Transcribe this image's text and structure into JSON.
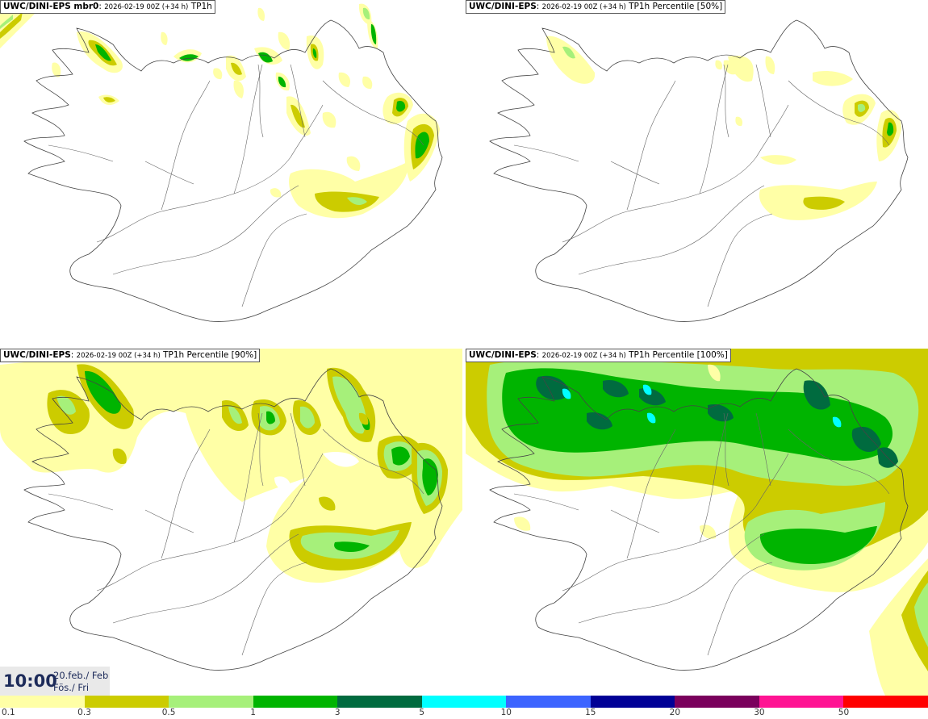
{
  "panels": [
    {
      "model": "UWC/DINI-EPS mbr0",
      "run": "2026-02-19 00Z (+34 h)",
      "param": "TP1h"
    },
    {
      "model": "UWC/DINI-EPS",
      "run": "2026-02-19 00Z (+34 h)",
      "param": "TP1h Percentile [50%]"
    },
    {
      "model": "UWC/DINI-EPS",
      "run": "2026-02-19 00Z (+34 h)",
      "param": "TP1h Percentile [90%]"
    },
    {
      "model": "UWC/DINI-EPS",
      "run": "2026-02-19 00Z (+34 h)",
      "param": "TP1h Percentile [100%]"
    }
  ],
  "valid": {
    "time": "10:00",
    "date": "20.feb./ Feb",
    "day": "Fös./ Fri"
  },
  "legend": {
    "labels": [
      "0.1",
      "0.3",
      "0.5",
      "1",
      "3",
      "5",
      "10",
      "15",
      "20",
      "30",
      "50"
    ],
    "colors": [
      "#ffffa6",
      "#cccc00",
      "#a6f07a",
      "#00b400",
      "#006b3f",
      "#00ffff",
      "#3c64ff",
      "#000096",
      "#7a005c",
      "#ff1493",
      "#ff0000"
    ]
  }
}
